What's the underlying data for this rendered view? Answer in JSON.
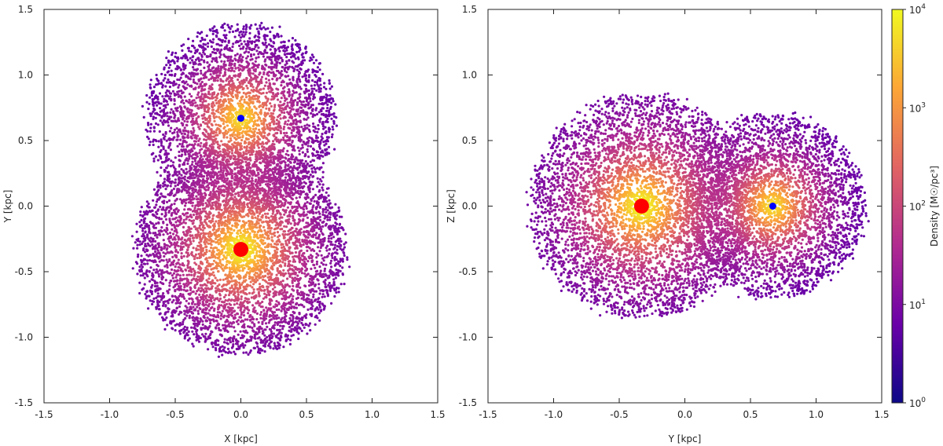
{
  "chart_data": [
    {
      "type": "scatter",
      "title": "",
      "xlabel": "X [kpc]",
      "ylabel": "Y [kpc]",
      "xlim": [
        -1.5,
        1.5
      ],
      "ylim": [
        -1.5,
        1.5
      ],
      "xticks": [
        "-1.5",
        "-1.0",
        "-0.5",
        "0.0",
        "0.5",
        "1.0",
        "1.5"
      ],
      "yticks": [
        "-1.5",
        "-1.0",
        "-0.5",
        "0.0",
        "0.5",
        "1.0",
        "1.5"
      ],
      "grid": false,
      "clusters": [
        {
          "center": [
            0.0,
            -0.33
          ],
          "radius": 0.8,
          "peak_density": 10000
        },
        {
          "center": [
            0.0,
            0.67
          ],
          "radius": 0.72,
          "peak_density": 5000
        }
      ],
      "markers": [
        {
          "x": 0.0,
          "y": -0.33,
          "color": "#ff0000",
          "size": "large"
        },
        {
          "x": 0.0,
          "y": 0.67,
          "color": "#0000ff",
          "size": "small"
        }
      ]
    },
    {
      "type": "scatter",
      "title": "",
      "xlabel": "Y [kpc]",
      "ylabel": "Z [kpc]",
      "xlim": [
        -1.5,
        1.5
      ],
      "ylim": [
        -1.5,
        1.5
      ],
      "xticks": [
        "-1.5",
        "-1.0",
        "-0.5",
        "0.0",
        "0.5",
        "1.0",
        "1.5"
      ],
      "yticks": [
        "-1.5",
        "-1.0",
        "-0.5",
        "0.0",
        "0.5",
        "1.0",
        "1.5"
      ],
      "grid": false,
      "clusters": [
        {
          "center": [
            -0.33,
            0.0
          ],
          "radius": 0.85,
          "peak_density": 10000
        },
        {
          "center": [
            0.67,
            0.0
          ],
          "radius": 0.7,
          "peak_density": 5000
        }
      ],
      "markers": [
        {
          "x": -0.33,
          "y": 0.0,
          "color": "#ff0000",
          "size": "large"
        },
        {
          "x": 0.67,
          "y": 0.0,
          "color": "#0000ff",
          "size": "small"
        }
      ]
    }
  ],
  "colorbar": {
    "label": "Density [M☉/pc³]",
    "scale": "log",
    "range": [
      1,
      10000
    ],
    "ticks": [
      {
        "value": 1,
        "mantissa": "10",
        "exp": "0"
      },
      {
        "value": 10,
        "mantissa": "10",
        "exp": "1"
      },
      {
        "value": 100,
        "mantissa": "10",
        "exp": "2"
      },
      {
        "value": 1000,
        "mantissa": "10",
        "exp": "3"
      },
      {
        "value": 10000,
        "mantissa": "10",
        "exp": "4"
      }
    ],
    "colors": [
      "#0d0887",
      "#6a00a8",
      "#b12a90",
      "#e16462",
      "#fca636",
      "#f0f921"
    ]
  }
}
